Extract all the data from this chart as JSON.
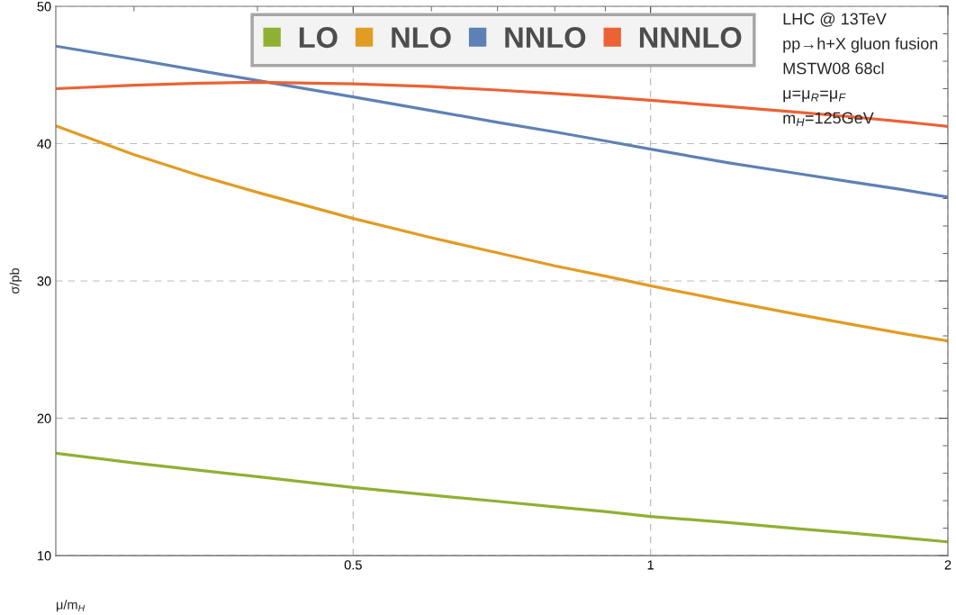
{
  "chart_data": {
    "type": "line",
    "xlabel": "μ/m$_{H}$",
    "ylabel": "σ/pb",
    "x": [
      0.25,
      0.3,
      0.35,
      0.4,
      0.5,
      0.6,
      0.7,
      0.8,
      0.9,
      1.0,
      1.2,
      1.4,
      1.6,
      1.8,
      2.0
    ],
    "series": [
      {
        "name": "LO",
        "color": "#8fb032",
        "values": [
          17.45,
          16.75,
          16.2,
          15.75,
          14.96,
          14.4,
          13.95,
          13.55,
          13.2,
          12.85,
          12.4,
          11.98,
          11.63,
          11.3,
          11.0
        ]
      },
      {
        "name": "NLO",
        "color": "#e19c24",
        "values": [
          41.3,
          39.2,
          37.65,
          36.45,
          34.55,
          33.15,
          32.05,
          31.1,
          30.35,
          29.65,
          28.52,
          27.6,
          26.83,
          26.17,
          25.63
        ]
      },
      {
        "name": "NNLO",
        "color": "#5e81b5",
        "values": [
          47.1,
          46.15,
          45.3,
          44.6,
          43.4,
          42.4,
          41.55,
          40.85,
          40.2,
          39.6,
          38.6,
          37.85,
          37.2,
          36.65,
          36.1
        ]
      },
      {
        "name": "NNNLO",
        "color": "#eb6235",
        "values": [
          44.0,
          44.25,
          44.4,
          44.47,
          44.35,
          44.15,
          43.9,
          43.65,
          43.4,
          43.15,
          42.7,
          42.3,
          41.95,
          41.6,
          41.25
        ]
      }
    ],
    "log": "x",
    "xlim": [
      0.25,
      2
    ],
    "xticks": [
      {
        "value": 0.3,
        "label": null
      },
      {
        "value": 0.4,
        "label": null
      },
      0.5,
      {
        "value": 0.6,
        "label": null
      },
      {
        "value": 0.7,
        "label": null
      },
      {
        "value": 0.8,
        "label": null
      },
      {
        "value": 0.9,
        "label": null
      },
      1,
      2
    ],
    "ylim": [
      10,
      50
    ],
    "yticks": [
      10,
      {
        "value": 12,
        "label": null
      },
      {
        "value": 14,
        "label": null
      },
      {
        "value": 16,
        "label": null
      },
      {
        "value": 18,
        "label": null
      },
      20,
      {
        "value": 22,
        "label": null
      },
      {
        "value": 24,
        "label": null
      },
      {
        "value": 26,
        "label": null
      },
      {
        "value": 28,
        "label": null
      },
      30,
      {
        "value": 32,
        "label": null
      },
      {
        "value": 34,
        "label": null
      },
      {
        "value": 36,
        "label": null
      },
      {
        "value": 38,
        "label": null
      },
      40,
      {
        "value": 42,
        "label": null
      },
      {
        "value": 44,
        "label": null
      },
      {
        "value": 46,
        "label": null
      },
      {
        "value": 48,
        "label": null
      },
      50
    ],
    "grid": true,
    "legend": "top",
    "annotations": [
      "LHC @ 13TeV",
      "pp→h+X gluon fusion",
      "MSTW08 68cl",
      "μ=μ$_{R}$=μ$_{F}$",
      "m$_{H}$=125GeV"
    ]
  }
}
